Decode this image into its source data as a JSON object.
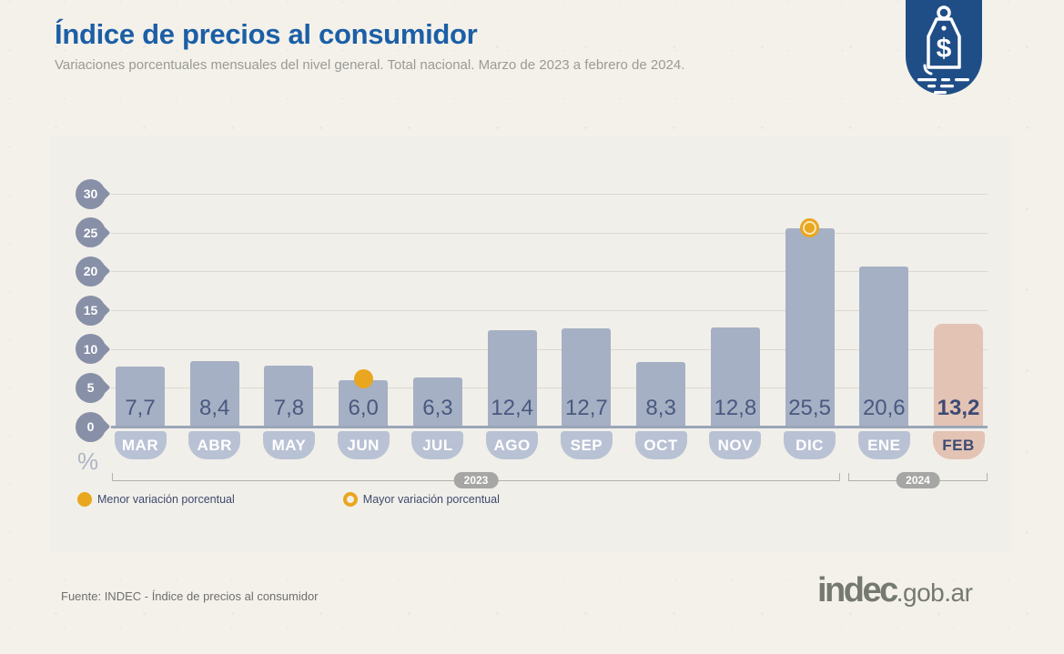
{
  "header": {
    "title": "Índice de precios al consumidor",
    "subtitle": "Variaciones porcentuales mensuales del nivel general. Total nacional. Marzo de 2023 a febrero de 2024."
  },
  "badge": {
    "icon": "price-tag-icon"
  },
  "chart_data": {
    "type": "bar",
    "title": "Índice de precios al consumidor",
    "subtitle": "Variaciones porcentuales mensuales del nivel general. Total nacional. Marzo de 2023 a febrero de 2024.",
    "categories": [
      "MAR",
      "ABR",
      "MAY",
      "JUN",
      "JUL",
      "AGO",
      "SEP",
      "OCT",
      "NOV",
      "DIC",
      "ENE",
      "FEB"
    ],
    "values": [
      7.7,
      8.4,
      7.8,
      6.0,
      6.3,
      12.4,
      12.7,
      8.3,
      12.8,
      25.5,
      20.6,
      13.2
    ],
    "value_labels": [
      "7,7",
      "8,4",
      "7,8",
      "6,0",
      "6,3",
      "12,4",
      "12,7",
      "8,3",
      "12,8",
      "25,5",
      "20,6",
      "13,2"
    ],
    "ylabel": "%",
    "yticks": [
      30,
      25,
      20,
      15,
      10,
      5,
      0
    ],
    "ylim": [
      0,
      30
    ],
    "grid": true,
    "legend_position": "bottom-left",
    "min_marker": {
      "index": 3,
      "month": "JUN",
      "value": 6.0,
      "label": "Menor variación porcentual"
    },
    "max_marker": {
      "index": 9,
      "month": "DIC",
      "value": 25.5,
      "label": "Mayor variación porcentual"
    },
    "highlight_index": 11,
    "year_groups": [
      {
        "label": "2023",
        "from": "MAR",
        "to": "DIC"
      },
      {
        "label": "2024",
        "from": "ENE",
        "to": "FEB"
      }
    ]
  },
  "legend": {
    "min_label": "Menor variación porcentual",
    "max_label": "Mayor variación porcentual"
  },
  "footer": {
    "source": "Fuente: INDEC - Índice de precios al consumidor",
    "logo_main": "indec",
    "logo_suffix": ".gob.ar"
  },
  "colors": {
    "bg": "#f4f1ea",
    "panel": "#f1efe9",
    "blue": "#1b5fa6",
    "badge": "#1f4e87",
    "bar": "#a5b0c4",
    "barhl": "#e3c3b4",
    "tab": "#b9c2d4",
    "value": "#4a5880",
    "pin": "#8890a8",
    "orange": "#e9a61f",
    "baseline": "#9aa5b8",
    "grid": "#dbd8d0",
    "pill": "#a6a6a4",
    "logo": "#757a71"
  }
}
